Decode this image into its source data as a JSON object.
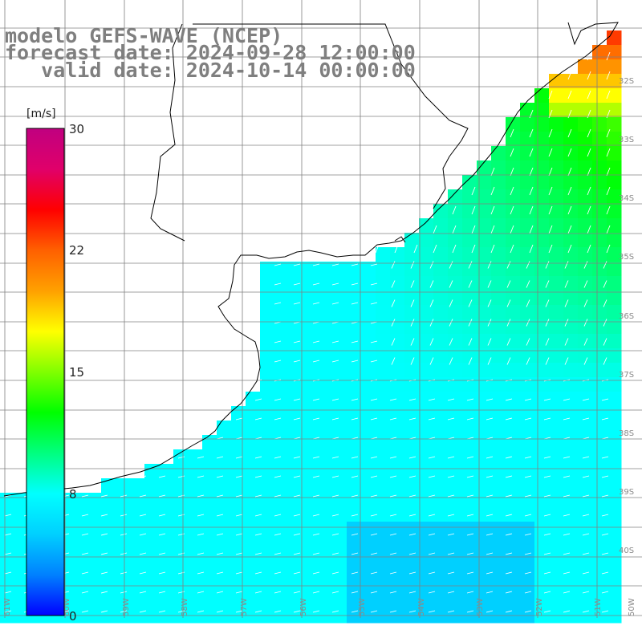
{
  "title": {
    "line1": "modelo GEFS-WAVE (NCEP)",
    "line2": "forecast date: 2024-09-28 12:00:00",
    "line3": "   valid date: 2024-10-14 00:00:00"
  },
  "colorbar": {
    "unit": "[m/s]",
    "ticks": [
      "30",
      "22",
      "15",
      "8",
      "0"
    ],
    "colors": [
      "#0000ff",
      "#0080ff",
      "#00d0ff",
      "#00ffff",
      "#00ff80",
      "#00ff00",
      "#80ff00",
      "#ffff00",
      "#ffa000",
      "#ff6000",
      "#ff0000",
      "#e0006a",
      "#c00080"
    ]
  },
  "map": {
    "lat_labels": [
      "32S",
      "33S",
      "34S",
      "35S",
      "36S",
      "37S",
      "38S",
      "39S",
      "40S"
    ],
    "lon_labels": [
      "61W",
      "60W",
      "59W",
      "58W",
      "57W",
      "56W",
      "55W",
      "54W",
      "53W",
      "52W",
      "51W",
      "50W"
    ],
    "land_color": "#ffffff",
    "grid_color": "#808080",
    "coast_color": "#000000",
    "arrow_color": "#ffffff"
  }
}
